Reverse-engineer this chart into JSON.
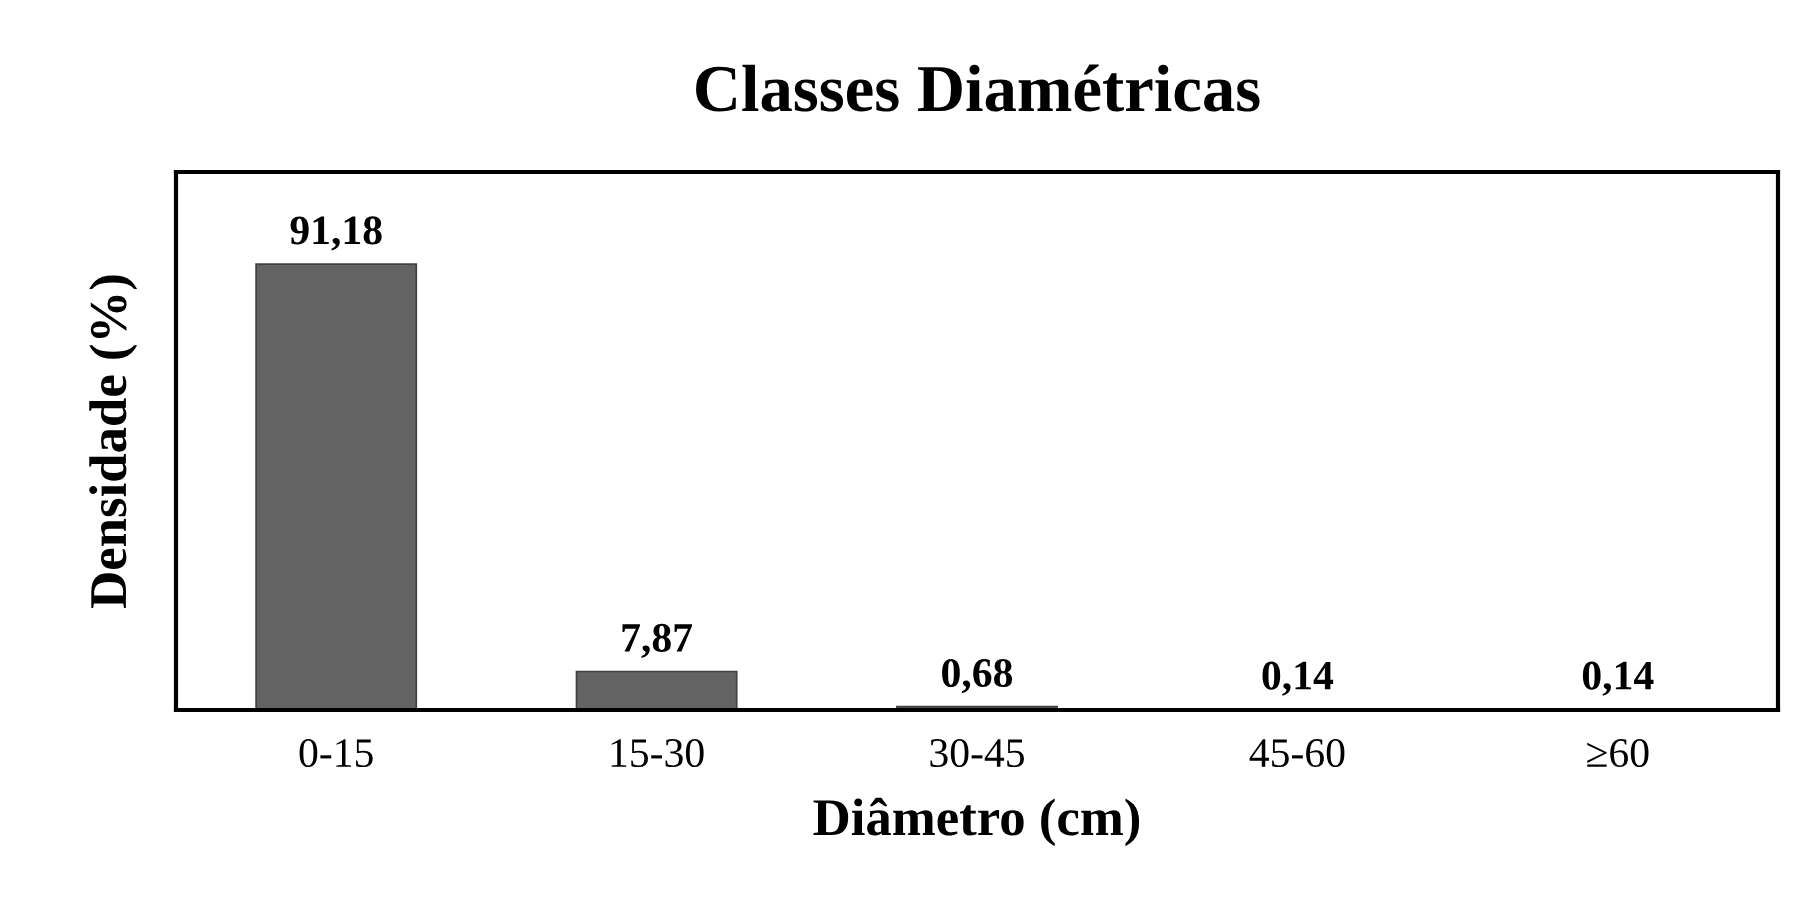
{
  "chart_data": {
    "type": "bar",
    "title": "Classes Diamétricas",
    "xlabel": "Diâmetro (cm)",
    "ylabel": "Densidade (%)",
    "categories": [
      "0-15",
      "15-30",
      "30-45",
      "45-60",
      "≥60"
    ],
    "values": [
      91.18,
      7.87,
      0.68,
      0.14,
      0.14
    ],
    "value_labels": [
      "91,18",
      "7,87",
      "0,68",
      "0,14",
      "0,14"
    ],
    "color": "#636363",
    "ylim": [
      0,
      110
    ],
    "tick_labels": "x",
    "grid": false
  }
}
